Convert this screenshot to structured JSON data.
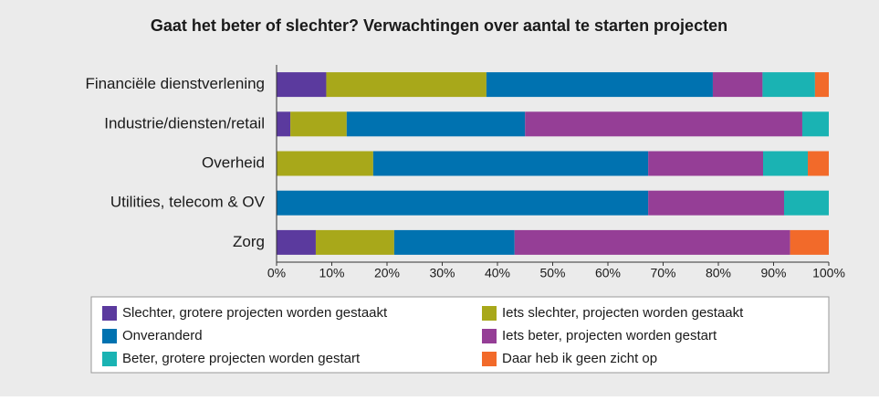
{
  "chart_data": {
    "type": "stacked-bar-horizontal",
    "title": "Gaat het beter of slechter? Verwachtingen over aantal te starten projecten",
    "categories": [
      "Financiële dienstverlening",
      "Industrie/diensten/retail",
      "Overheid",
      "Utilities, telecom & OV",
      "Zorg"
    ],
    "series": [
      {
        "name": "Slechter, grotere projecten worden gestaakt",
        "color": "#5b3a9e",
        "values": [
          9,
          2.5,
          0,
          0,
          7.1
        ]
      },
      {
        "name": "Iets slechter, projecten worden gestaakt",
        "color": "#a8a81a",
        "values": [
          29,
          10.2,
          17.5,
          0,
          14.2
        ]
      },
      {
        "name": "Onveranderd",
        "color": "#0072b0",
        "values": [
          41,
          32.3,
          49.8,
          67.3,
          21.8
        ]
      },
      {
        "name": "Iets beter, projecten worden gestart",
        "color": "#953e96",
        "values": [
          9,
          50.2,
          20.8,
          24.6,
          49.9
        ]
      },
      {
        "name": "Beter, grotere projecten worden gestart",
        "color": "#1ab3b3",
        "values": [
          9.5,
          4.8,
          8.1,
          8.1,
          0
        ]
      },
      {
        "name": "Daar heb ik geen zicht op",
        "color": "#f26a2a",
        "values": [
          2.5,
          0,
          3.8,
          0,
          7
        ]
      }
    ],
    "xlim": [
      0,
      100
    ],
    "xticks": [
      {
        "value": 0,
        "label": "0%"
      },
      {
        "value": 10,
        "label": "10%"
      },
      {
        "value": 20,
        "label": "20%"
      },
      {
        "value": 30,
        "label": "30%"
      },
      {
        "value": 40,
        "label": "40%"
      },
      {
        "value": 50,
        "label": "50%"
      },
      {
        "value": 60,
        "label": "60%"
      },
      {
        "value": 70,
        "label": "70%"
      },
      {
        "value": 80,
        "label": "80%"
      },
      {
        "value": 90,
        "label": "90%"
      },
      {
        "value": 100,
        "label": "100%"
      }
    ]
  }
}
